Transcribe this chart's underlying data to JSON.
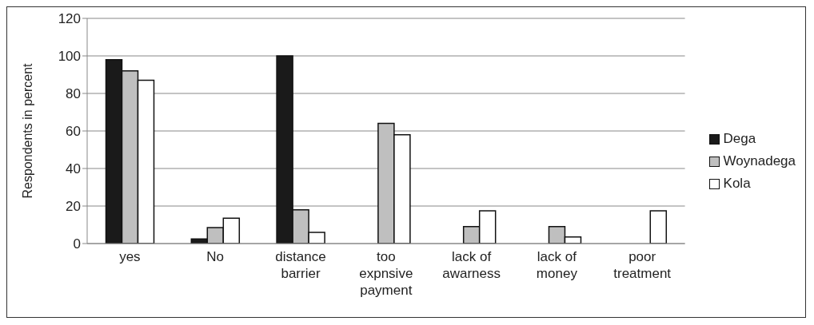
{
  "chart_data": {
    "type": "bar",
    "ylabel": "Respondents in percent",
    "categories": [
      "yes",
      "No",
      "distance barrier",
      "too expnsive payment",
      "lack of awarness",
      "lack of money",
      "poor treatment"
    ],
    "series": [
      {
        "name": "Dega",
        "color": "#1a1a1a",
        "values": [
          98,
          2.5,
          100,
          0,
          0,
          0,
          0
        ]
      },
      {
        "name": "Woynadega",
        "color": "#bfbfbf",
        "values": [
          92,
          8.5,
          18,
          64,
          9,
          9,
          0
        ]
      },
      {
        "name": "Kola",
        "color": "#ffffff",
        "values": [
          87,
          13.5,
          6,
          58,
          17.5,
          3.5,
          17.5
        ]
      }
    ],
    "ylim": [
      0,
      120
    ],
    "yticks": [
      0,
      20,
      40,
      60,
      80,
      100,
      120
    ],
    "grid": "y",
    "legend": "right"
  }
}
